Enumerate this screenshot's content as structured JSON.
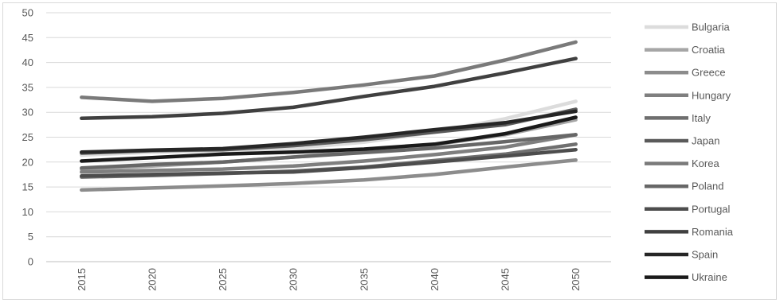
{
  "chart_data": {
    "type": "line",
    "title": "",
    "xlabel": "",
    "ylabel": "",
    "x": [
      "2015",
      "2020",
      "2025",
      "2030",
      "2035",
      "2040",
      "2045",
      "2050"
    ],
    "ylim": [
      0,
      50
    ],
    "yticks": [
      0,
      5,
      10,
      15,
      20,
      25,
      30,
      35,
      40,
      45,
      50
    ],
    "grid": true,
    "legend": "right",
    "series": [
      {
        "name": "Bulgaria",
        "color": "#dcdcdc",
        "values": [
          21.4,
          22.0,
          22.3,
          22.8,
          24.0,
          26.0,
          28.7,
          32.2
        ]
      },
      {
        "name": "Croatia",
        "color": "#a6a6a6",
        "values": [
          18.5,
          19.2,
          20.0,
          21.0,
          22.2,
          23.5,
          25.5,
          28.5
        ]
      },
      {
        "name": "Greece",
        "color": "#8c8c8c",
        "values": [
          14.4,
          14.8,
          15.2,
          15.7,
          16.4,
          17.5,
          19.0,
          20.4
        ]
      },
      {
        "name": "Hungary",
        "color": "#7f7f7f",
        "values": [
          18.0,
          18.3,
          18.6,
          19.2,
          20.2,
          21.5,
          23.0,
          25.5
        ]
      },
      {
        "name": "Italy",
        "color": "#6f6f6f",
        "values": [
          17.0,
          17.3,
          17.7,
          18.2,
          19.0,
          20.3,
          21.6,
          23.6
        ]
      },
      {
        "name": "Japan",
        "color": "#5a5a5a",
        "values": [
          21.8,
          22.3,
          22.5,
          23.3,
          24.5,
          26.0,
          27.5,
          30.6
        ]
      },
      {
        "name": "Korea",
        "color": "#7a7a7a",
        "values": [
          33.0,
          32.2,
          32.8,
          34.0,
          35.5,
          37.3,
          40.5,
          44.1
        ]
      },
      {
        "name": "Poland",
        "color": "#676767",
        "values": [
          18.8,
          19.5,
          20.0,
          21.0,
          21.9,
          22.8,
          24.1,
          25.5
        ]
      },
      {
        "name": "Portugal",
        "color": "#4d4d4d",
        "values": [
          17.2,
          17.5,
          17.8,
          18.0,
          18.9,
          20.0,
          21.2,
          22.5
        ]
      },
      {
        "name": "Romania",
        "color": "#404040",
        "values": [
          28.8,
          29.1,
          29.8,
          31.0,
          33.2,
          35.2,
          37.9,
          40.8
        ]
      },
      {
        "name": "Spain",
        "color": "#262626",
        "values": [
          22.0,
          22.4,
          22.7,
          23.7,
          25.0,
          26.5,
          27.9,
          30.2
        ]
      },
      {
        "name": "Ukraine",
        "color": "#1a1a1a",
        "values": [
          20.2,
          20.9,
          21.6,
          22.0,
          22.6,
          23.6,
          25.7,
          29.0
        ]
      }
    ]
  }
}
